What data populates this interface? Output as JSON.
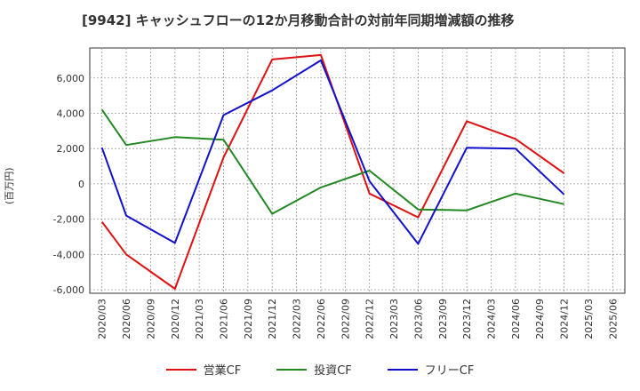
{
  "chart_data": {
    "type": "line",
    "title": "[9942]  キャッシュフローの12か月移動合計の対前年同期増減額の推移",
    "ylabel": "(百万円)",
    "xlabel": "",
    "ylim": [
      -6200,
      7700
    ],
    "yticks": [
      -6000,
      -4000,
      -2000,
      0,
      2000,
      4000,
      6000
    ],
    "ytick_labels": [
      "-6,000",
      "-4,000",
      "-2,000",
      "0",
      "2,000",
      "4,000",
      "6,000"
    ],
    "categories": [
      "2020/03",
      "2020/06",
      "2020/09",
      "2020/12",
      "2021/03",
      "2021/06",
      "2021/09",
      "2021/12",
      "2022/03",
      "2022/06",
      "2022/09",
      "2022/12",
      "2023/03",
      "2023/06",
      "2023/09",
      "2023/12",
      "2024/03",
      "2024/06",
      "2024/09",
      "2024/12",
      "2025/03",
      "2025/06"
    ],
    "series": [
      {
        "name": "営業CF",
        "color": "#dd1111",
        "values": [
          -2150,
          -4000,
          null,
          -5950,
          null,
          1500,
          null,
          7050,
          null,
          7300,
          null,
          -550,
          null,
          -1900,
          null,
          3550,
          null,
          2550,
          null,
          600,
          null,
          null
        ]
      },
      {
        "name": "投資CF",
        "color": "#228822",
        "values": [
          4200,
          2200,
          null,
          2650,
          null,
          2500,
          null,
          -1700,
          null,
          -200,
          null,
          750,
          null,
          -1450,
          null,
          -1500,
          null,
          -550,
          null,
          -1150,
          null,
          null
        ]
      },
      {
        "name": "フリーCF",
        "color": "#1111cc",
        "values": [
          2050,
          -1800,
          null,
          -3350,
          null,
          3900,
          null,
          5300,
          null,
          7000,
          null,
          150,
          null,
          -3400,
          null,
          2050,
          null,
          2000,
          null,
          -600,
          null,
          null
        ]
      }
    ]
  }
}
